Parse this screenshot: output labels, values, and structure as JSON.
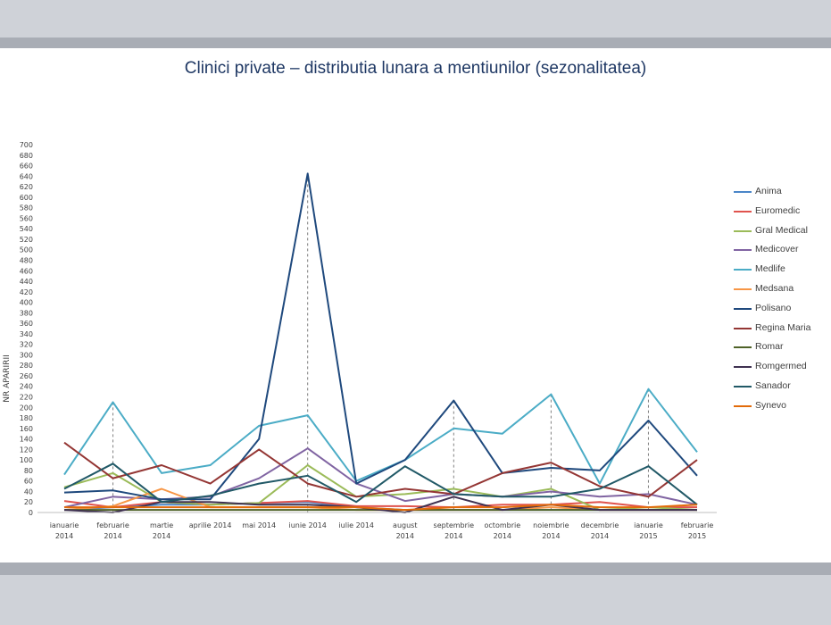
{
  "chart_data": {
    "type": "line",
    "title": "Clinici private – distributia lunara a mentiunilor (sezonalitatea)",
    "ylabel": "NR APARIRII",
    "xlabel": "",
    "ylim": [
      0,
      700
    ],
    "ytick_step": 20,
    "grid": false,
    "legend_position": "right",
    "categories": [
      [
        "ianuarie",
        "2014"
      ],
      [
        "februarie",
        "2014"
      ],
      [
        "martie",
        "2014"
      ],
      [
        "aprilie 2014"
      ],
      [
        "mai 2014"
      ],
      [
        "iunie 2014"
      ],
      [
        "iulie 2014"
      ],
      [
        "august",
        "2014"
      ],
      [
        "septembrie",
        "2014"
      ],
      [
        "octombrie",
        "2014"
      ],
      [
        "noiembrie",
        "2014"
      ],
      [
        "decembrie",
        "2014"
      ],
      [
        "ianuarie",
        "2015"
      ],
      [
        "februarie",
        "2015"
      ]
    ],
    "dashed_guides_at": [
      1,
      5,
      8,
      10,
      12
    ],
    "series": [
      {
        "name": "Anima",
        "color": "#4a86c8",
        "values": [
          5,
          10,
          15,
          15,
          18,
          20,
          10,
          5,
          5,
          5,
          5,
          5,
          5,
          5
        ]
      },
      {
        "name": "Euromedic",
        "color": "#e0534d",
        "values": [
          22,
          10,
          20,
          15,
          18,
          22,
          12,
          12,
          10,
          15,
          15,
          20,
          10,
          10
        ]
      },
      {
        "name": "Gral Medical",
        "color": "#9bbb59",
        "values": [
          48,
          75,
          20,
          15,
          18,
          90,
          30,
          35,
          45,
          30,
          45,
          5,
          10,
          5
        ]
      },
      {
        "name": "Medicover",
        "color": "#8064a2",
        "values": [
          10,
          30,
          25,
          30,
          65,
          122,
          55,
          22,
          35,
          30,
          40,
          30,
          35,
          15
        ]
      },
      {
        "name": "Medlife",
        "color": "#4bacc6",
        "values": [
          72,
          210,
          75,
          90,
          165,
          185,
          60,
          100,
          160,
          150,
          225,
          55,
          235,
          115
        ]
      },
      {
        "name": "Medsana",
        "color": "#f79646",
        "values": [
          5,
          12,
          45,
          10,
          10,
          10,
          5,
          5,
          5,
          5,
          10,
          5,
          5,
          5
        ]
      },
      {
        "name": "Polisano",
        "color": "#1f497d",
        "values": [
          38,
          42,
          25,
          25,
          140,
          645,
          55,
          100,
          213,
          75,
          85,
          80,
          175,
          70
        ]
      },
      {
        "name": "Regina Maria",
        "color": "#943634",
        "values": [
          133,
          65,
          90,
          55,
          120,
          55,
          30,
          45,
          35,
          75,
          95,
          50,
          30,
          100
        ]
      },
      {
        "name": "Romar",
        "color": "#4f6228",
        "values": [
          5,
          5,
          5,
          5,
          5,
          5,
          5,
          5,
          5,
          5,
          5,
          5,
          5,
          5
        ]
      },
      {
        "name": "Romgermed",
        "color": "#3f3151",
        "values": [
          5,
          0,
          20,
          20,
          15,
          15,
          10,
          0,
          30,
          5,
          15,
          5,
          5,
          5
        ]
      },
      {
        "name": "Sanador",
        "color": "#215967",
        "values": [
          45,
          93,
          20,
          32,
          55,
          70,
          20,
          88,
          35,
          30,
          30,
          45,
          88,
          15
        ]
      },
      {
        "name": "Synevo",
        "color": "#e26b0a",
        "values": [
          10,
          10,
          10,
          10,
          10,
          10,
          10,
          5,
          10,
          10,
          15,
          10,
          10,
          15
        ]
      }
    ]
  }
}
